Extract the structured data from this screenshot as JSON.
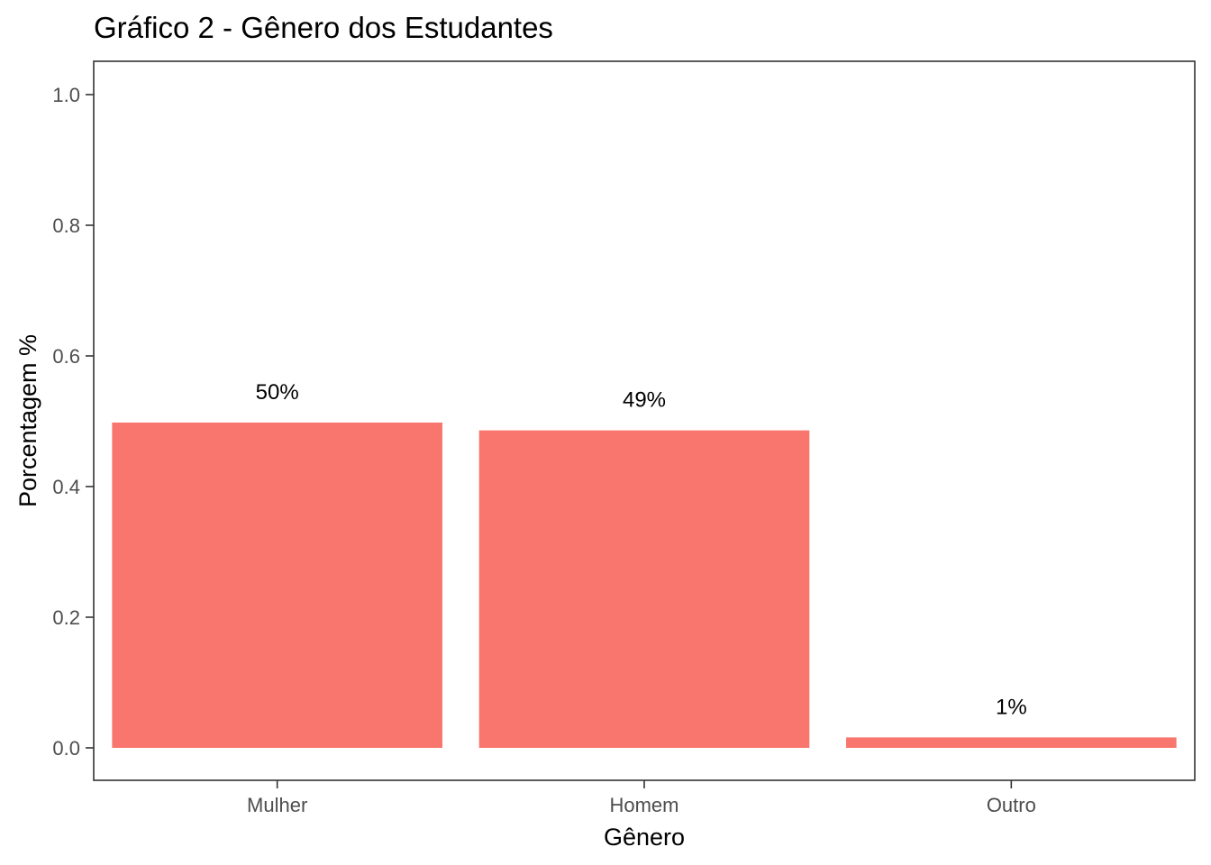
{
  "chart_data": {
    "type": "bar",
    "title": "Gráfico 2 - Gênero dos Estudantes",
    "xlabel": "Gênero",
    "ylabel": "Porcentagem %",
    "categories": [
      "Mulher",
      "Homem",
      "Outro"
    ],
    "values": [
      0.498,
      0.486,
      0.016
    ],
    "data_labels": [
      "50%",
      "49%",
      "1%"
    ],
    "ylim": [
      0,
      1
    ],
    "yticks": [
      "0.0",
      "0.2",
      "0.4",
      "0.6",
      "0.8",
      "1.0"
    ],
    "bar_color": "#F8766D",
    "panel_border_color": "#333333",
    "grid": false,
    "legend": "none"
  }
}
